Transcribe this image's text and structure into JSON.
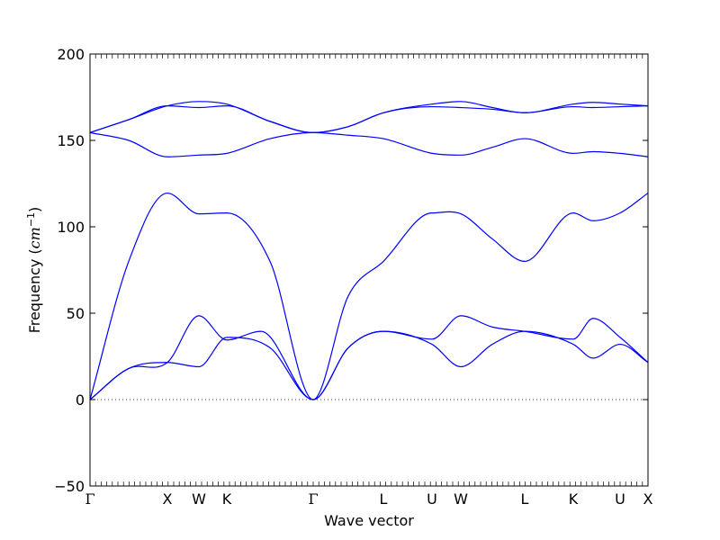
{
  "chart_data": {
    "type": "line",
    "xlabel": "Wave vector",
    "ylabel": "Frequency",
    "ylabel_unit": "cm",
    "ylabel_unit_exp": "−1",
    "ylim": [
      -50,
      200
    ],
    "yticks": [
      -50,
      0,
      50,
      100,
      150,
      200
    ],
    "grid": false,
    "zero_reference_line": true,
    "colors": {
      "bands": "#0000ff",
      "axes": "#000000",
      "zero_line": "#000000"
    },
    "kpath": {
      "x_positions": [
        0,
        0.86,
        1.21,
        1.52,
        2.48,
        3.26,
        3.8,
        4.12,
        4.83,
        5.37,
        5.89,
        6.2
      ],
      "labels": [
        "Γ",
        "X",
        "W",
        "K",
        "Γ",
        "L",
        "U",
        "W",
        "L",
        "K",
        "U",
        "X"
      ]
    },
    "xlim": [
      0,
      6.2
    ],
    "series": [
      {
        "x": [
          0,
          0.43,
          0.86,
          1.21,
          1.52,
          2.0,
          2.48,
          2.87,
          3.26,
          3.8,
          4.12,
          4.47,
          4.83,
          5.37,
          5.59,
          5.89,
          6.2
        ],
        "values": [
          0,
          18,
          21.5,
          19,
          36,
          30,
          0,
          30,
          39.5,
          32,
          19,
          32,
          39.5,
          32,
          24,
          32,
          21.5
        ]
      },
      {
        "x": [
          0,
          0.43,
          0.86,
          1.21,
          1.52,
          1.9,
          2.48,
          2.87,
          3.26,
          3.8,
          4.12,
          4.47,
          4.83,
          5.37,
          5.59,
          5.89,
          6.2
        ],
        "values": [
          0,
          18,
          21.5,
          48.5,
          34.5,
          39.5,
          0,
          30,
          39.5,
          35,
          48.5,
          42,
          39.5,
          35,
          47,
          36,
          21.5
        ]
      },
      {
        "x": [
          0,
          0.43,
          0.86,
          1.21,
          1.52,
          2.0,
          2.48,
          2.87,
          3.26,
          3.8,
          4.12,
          4.47,
          4.83,
          5.37,
          5.59,
          5.89,
          6.2
        ],
        "values": [
          0,
          80,
          119.5,
          107.5,
          108,
          80,
          0,
          60,
          80,
          108,
          107.5,
          93,
          80,
          108,
          103.5,
          108,
          119.5
        ]
      },
      {
        "x": [
          0,
          0.43,
          0.86,
          1.21,
          1.52,
          2.0,
          2.48,
          2.87,
          3.26,
          3.8,
          4.12,
          4.47,
          4.83,
          5.37,
          5.59,
          5.89,
          6.2
        ],
        "values": [
          154.5,
          150,
          140.5,
          141.5,
          142.5,
          151,
          154.5,
          153,
          151,
          142.5,
          141.5,
          146,
          151,
          142.5,
          143.5,
          142.5,
          140.5
        ]
      },
      {
        "x": [
          0,
          0.43,
          0.86,
          1.21,
          1.52,
          2.0,
          2.48,
          2.87,
          3.26,
          3.8,
          4.12,
          4.47,
          4.83,
          5.37,
          5.59,
          5.89,
          6.2
        ],
        "values": [
          154.5,
          162,
          170,
          169,
          170,
          161,
          154.5,
          158,
          166,
          169.5,
          169,
          168,
          166,
          169.5,
          169,
          169.5,
          170
        ]
      },
      {
        "x": [
          0,
          0.43,
          0.86,
          1.21,
          1.52,
          2.0,
          2.48,
          2.87,
          3.26,
          3.8,
          4.12,
          4.47,
          4.83,
          5.37,
          5.59,
          5.89,
          6.2
        ],
        "values": [
          154.5,
          162,
          170,
          172.5,
          171,
          161,
          154.5,
          158,
          166,
          171,
          172.5,
          169,
          166,
          171,
          172,
          171,
          170
        ]
      }
    ]
  }
}
